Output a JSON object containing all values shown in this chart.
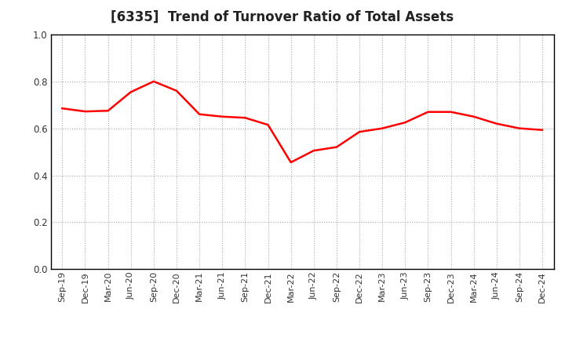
{
  "title": "[6335]  Trend of Turnover Ratio of Total Assets",
  "line_color": "#FF0000",
  "line_width": 1.8,
  "background_color": "#FFFFFF",
  "grid_color": "#AAAAAA",
  "ylim": [
    0.0,
    1.0
  ],
  "yticks": [
    0.0,
    0.2,
    0.4,
    0.6,
    0.8,
    1.0
  ],
  "x_labels": [
    "Sep-19",
    "Dec-19",
    "Mar-20",
    "Jun-20",
    "Sep-20",
    "Dec-20",
    "Mar-21",
    "Jun-21",
    "Sep-21",
    "Dec-21",
    "Mar-22",
    "Jun-22",
    "Sep-22",
    "Dec-22",
    "Mar-23",
    "Jun-23",
    "Sep-23",
    "Dec-23",
    "Mar-24",
    "Jun-24",
    "Sep-24",
    "Dec-24"
  ],
  "values": [
    0.685,
    0.672,
    0.675,
    0.755,
    0.8,
    0.76,
    0.66,
    0.65,
    0.645,
    0.615,
    0.455,
    0.505,
    0.52,
    0.585,
    0.6,
    0.625,
    0.67,
    0.67,
    0.65,
    0.62,
    0.6,
    0.593
  ],
  "title_fontsize": 12,
  "tick_fontsize": 8,
  "spine_color": "#000000"
}
